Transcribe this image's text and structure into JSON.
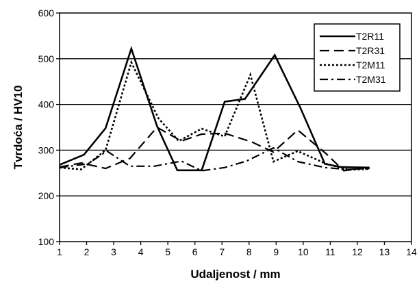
{
  "chart_data": {
    "type": "line",
    "title": "",
    "xlabel": "Udaljenost / mm",
    "ylabel": "Tvrdoća / HV10",
    "xlim": [
      1,
      14
    ],
    "ylim": [
      100,
      600
    ],
    "xticks": [
      1,
      2,
      3,
      4,
      5,
      6,
      7,
      8,
      9,
      10,
      11,
      12,
      13,
      14
    ],
    "yticks": [
      100,
      200,
      300,
      400,
      500,
      600
    ],
    "grid": "horizontal",
    "legend_position": "top-right",
    "series": [
      {
        "name": "T2R11",
        "style": "solid",
        "points": [
          [
            1,
            268
          ],
          [
            1.9,
            290
          ],
          [
            2.7,
            348
          ],
          [
            3.65,
            522
          ],
          [
            4.6,
            353
          ],
          [
            5.35,
            256
          ],
          [
            6.25,
            256
          ],
          [
            7.1,
            406
          ],
          [
            7.85,
            412
          ],
          [
            8.95,
            508
          ],
          [
            9.9,
            392
          ],
          [
            10.8,
            270
          ],
          [
            11.4,
            263
          ],
          [
            12.45,
            262
          ]
        ]
      },
      {
        "name": "T2R31",
        "style": "dashed",
        "points": [
          [
            1,
            263
          ],
          [
            1.8,
            272
          ],
          [
            2.7,
            260
          ],
          [
            3.6,
            282
          ],
          [
            4.6,
            350
          ],
          [
            5.5,
            320
          ],
          [
            6.25,
            335
          ],
          [
            7.1,
            337
          ],
          [
            8.1,
            318
          ],
          [
            8.9,
            296
          ],
          [
            9.8,
            344
          ],
          [
            10.85,
            292
          ],
          [
            11.5,
            255
          ],
          [
            12.45,
            263
          ]
        ]
      },
      {
        "name": "T2M11",
        "style": "dotted",
        "points": [
          [
            1,
            262
          ],
          [
            1.8,
            258
          ],
          [
            2.7,
            300
          ],
          [
            3.65,
            492
          ],
          [
            4.65,
            370
          ],
          [
            5.4,
            320
          ],
          [
            6.25,
            347
          ],
          [
            7.1,
            330
          ],
          [
            8.05,
            465
          ],
          [
            8.9,
            275
          ],
          [
            9.8,
            298
          ],
          [
            10.85,
            270
          ],
          [
            11.7,
            257
          ],
          [
            12.45,
            259
          ]
        ]
      },
      {
        "name": "T2M31",
        "style": "dashdot",
        "points": [
          [
            1,
            262
          ],
          [
            2.05,
            270
          ],
          [
            2.75,
            298
          ],
          [
            3.6,
            265
          ],
          [
            4.5,
            265
          ],
          [
            5.5,
            276
          ],
          [
            6.25,
            255
          ],
          [
            7.1,
            262
          ],
          [
            7.9,
            276
          ],
          [
            8.9,
            305
          ],
          [
            9.8,
            275
          ],
          [
            10.8,
            262
          ],
          [
            11.6,
            258
          ],
          [
            12.45,
            260
          ]
        ]
      }
    ]
  }
}
